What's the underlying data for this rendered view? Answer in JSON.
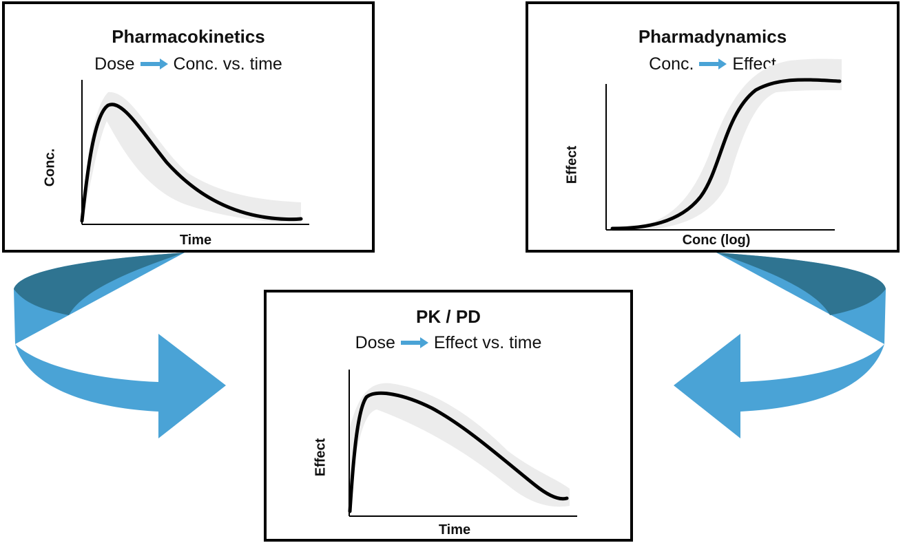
{
  "colors": {
    "arrow_light": "#4aa3d6",
    "arrow_dark": "#2f7491",
    "curve": "#000000",
    "band": "#ececec",
    "border": "#000000"
  },
  "panels": {
    "pk": {
      "title": "Pharmacokinetics",
      "subtitle_left": "Dose",
      "subtitle_right": "Conc. vs. time",
      "xlabel": "Time",
      "ylabel": "Conc."
    },
    "pd": {
      "title": "Pharmadynamics",
      "subtitle_left": "Conc.",
      "subtitle_right": "Effect",
      "xlabel": "Conc (log)",
      "ylabel": "Effect"
    },
    "pkpd": {
      "title": "PK / PD",
      "subtitle_left": "Dose",
      "subtitle_right": "Effect vs. time",
      "xlabel": "Time",
      "ylabel": "Effect"
    }
  },
  "icons": {
    "subtitle_arrow": "right-arrow-icon",
    "left_flow": "curved-arrow-icon",
    "right_flow": "curved-arrow-icon"
  }
}
